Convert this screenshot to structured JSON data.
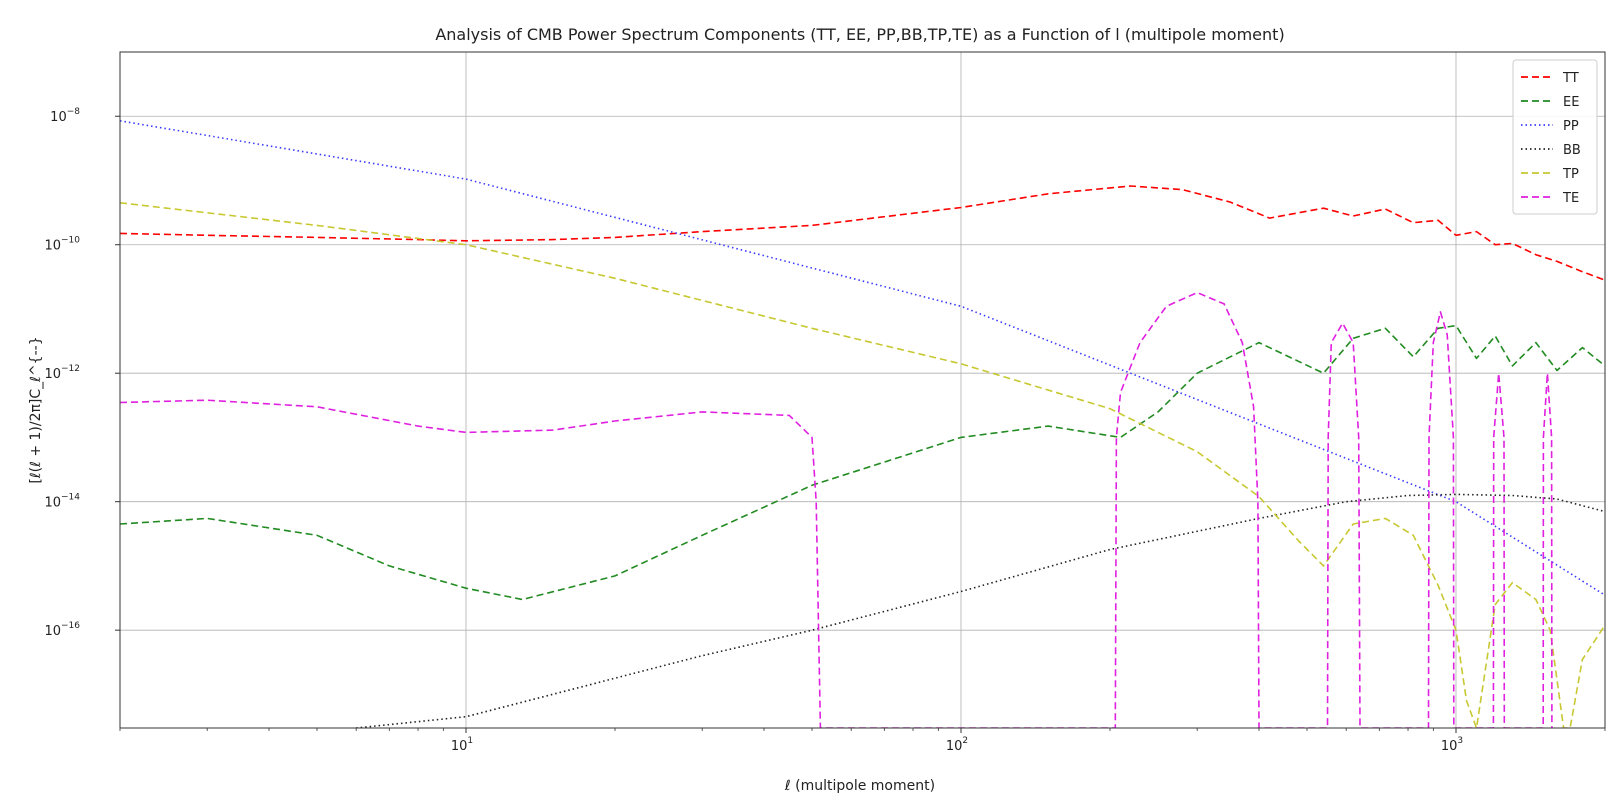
{
  "chart_data": {
    "type": "line",
    "title": "Analysis of CMB Power Spectrum Components (TT, EE, PP,BB,TP,TE) as a Function of l (multipole moment)",
    "xlabel": "ℓ (multipole moment)",
    "ylabel": "[ℓ(ℓ + 1)/2π]C_ℓ^{--}",
    "x_scale": "log",
    "y_scale": "log",
    "xlim": [
      2,
      2000
    ],
    "ylim": [
      3e-18,
      1e-07
    ],
    "x_ticks": [
      {
        "value": 10,
        "base": "10",
        "exp": "1"
      },
      {
        "value": 100,
        "base": "10",
        "exp": "2"
      },
      {
        "value": 1000,
        "base": "10",
        "exp": "3"
      }
    ],
    "y_ticks": [
      {
        "value": 1e-16,
        "base": "10",
        "exp": "−16"
      },
      {
        "value": 1e-14,
        "base": "10",
        "exp": "−14"
      },
      {
        "value": 1e-12,
        "base": "10",
        "exp": "−12"
      },
      {
        "value": 1e-10,
        "base": "10",
        "exp": "−10"
      },
      {
        "value": 1e-08,
        "base": "10",
        "exp": "−8"
      }
    ],
    "grid": true,
    "legend_position": "top-right",
    "series": [
      {
        "name": "TT",
        "color": "#ff0000",
        "dash": "dashed",
        "x": [
          2,
          3,
          5,
          8,
          10,
          15,
          20,
          30,
          50,
          100,
          150,
          220,
          280,
          350,
          420,
          540,
          620,
          720,
          820,
          920,
          1000,
          1100,
          1200,
          1300,
          1450,
          1600,
          1800,
          2000
        ],
        "y": [
          1.5e-10,
          1.4e-10,
          1.3e-10,
          1.2e-10,
          1.15e-10,
          1.2e-10,
          1.3e-10,
          1.6e-10,
          2e-10,
          3.8e-10,
          6.2e-10,
          8.2e-10,
          7.2e-10,
          4.6e-10,
          2.6e-10,
          3.7e-10,
          2.8e-10,
          3.6e-10,
          2.2e-10,
          2.4e-10,
          1.4e-10,
          1.6e-10,
          1e-10,
          1.05e-10,
          7e-11,
          5.5e-11,
          3.8e-11,
          2.8e-11
        ]
      },
      {
        "name": "EE",
        "color": "#228b22",
        "dash": "dashed",
        "x": [
          2,
          3,
          5,
          7,
          10,
          13,
          20,
          30,
          50,
          100,
          150,
          210,
          250,
          300,
          400,
          540,
          620,
          720,
          820,
          920,
          1000,
          1100,
          1200,
          1300,
          1450,
          1600,
          1800,
          2000
        ],
        "y": [
          4.5e-15,
          5.5e-15,
          3e-15,
          1e-15,
          4.5e-16,
          3e-16,
          7e-16,
          3e-15,
          1.8e-14,
          1e-13,
          1.5e-13,
          1e-13,
          2.5e-13,
          1e-12,
          3e-12,
          1e-12,
          3.5e-12,
          5e-12,
          1.8e-12,
          5e-12,
          5.5e-12,
          1.7e-12,
          3.8e-12,
          1.3e-12,
          3e-12,
          1.1e-12,
          2.5e-12,
          1.3e-12
        ]
      },
      {
        "name": "PP",
        "color": "#3a3aff",
        "dash": "dotted",
        "x": [
          2,
          10,
          100,
          1000,
          2000
        ],
        "y": [
          8.5e-09,
          1.05e-09,
          1.1e-11,
          1e-14,
          3.5e-16
        ]
      },
      {
        "name": "BB",
        "color": "#222222",
        "dash": "dotted",
        "x": [
          6,
          10,
          30,
          50,
          100,
          200,
          400,
          600,
          800,
          1000,
          1300,
          1600,
          2000
        ],
        "y": [
          3e-18,
          4.5e-18,
          4e-17,
          1e-16,
          4e-16,
          1.8e-15,
          5.5e-15,
          1e-14,
          1.25e-14,
          1.3e-14,
          1.25e-14,
          1.1e-14,
          7e-15
        ]
      },
      {
        "name": "TP",
        "color": "#c8c832",
        "dash": "dashed",
        "x": [
          2,
          5,
          10,
          20,
          50,
          100,
          200,
          300,
          400,
          480,
          540,
          620,
          720,
          820,
          920,
          1000,
          1050,
          1100,
          1200,
          1300,
          1450,
          1550,
          1650,
          1700,
          1800,
          2000
        ],
        "y": [
          4.5e-10,
          2e-10,
          1e-10,
          3e-11,
          5e-12,
          1.4e-12,
          2.8e-13,
          6e-14,
          1.2e-14,
          2.5e-15,
          1e-15,
          4.5e-15,
          5.5e-15,
          3e-15,
          5e-16,
          1e-16,
          8e-18,
          3e-18,
          2.5e-16,
          5.5e-16,
          3e-16,
          1e-16,
          3e-18,
          3e-18,
          3.5e-17,
          1.2e-16
        ]
      },
      {
        "name": "TE",
        "color": "#e020e0",
        "dash": "dashed",
        "x": [
          2,
          3,
          5,
          8,
          10,
          15,
          20,
          30,
          45,
          50,
          51,
          52,
          205,
          206,
          210,
          230,
          260,
          300,
          340,
          370,
          390,
          398,
          400,
          550,
          552,
          560,
          590,
          620,
          636,
          640,
          880,
          882,
          900,
          930,
          960,
          988,
          990,
          1190,
          1192,
          1220,
          1250,
          1252,
          1500,
          1502,
          1530,
          1560,
          1562
        ],
        "y": [
          3.5e-13,
          3.8e-13,
          3e-13,
          1.5e-13,
          1.2e-13,
          1.3e-13,
          1.8e-13,
          2.5e-13,
          2.2e-13,
          1e-13,
          1e-14,
          3e-18,
          3e-18,
          1e-13,
          5e-13,
          3e-12,
          1.1e-11,
          1.8e-11,
          1.2e-11,
          3e-12,
          3e-13,
          1e-14,
          3e-18,
          3e-18,
          1e-13,
          3e-12,
          6e-12,
          3e-12,
          1e-13,
          3e-18,
          3e-18,
          1e-13,
          3e-12,
          9e-12,
          4e-12,
          1e-13,
          3e-18,
          3e-18,
          1e-13,
          1e-12,
          1e-13,
          3e-18,
          3e-18,
          1e-13,
          1e-12,
          1e-13,
          3e-18
        ]
      }
    ]
  }
}
